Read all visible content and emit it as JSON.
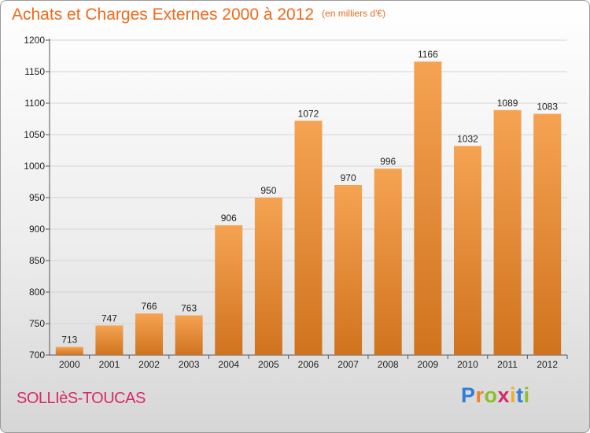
{
  "header": {
    "title": "Achats et Charges Externes 2000 à 2012",
    "unit": "(en milliers d'€)"
  },
  "footer": {
    "commune": "SOLLIèS-TOUCAS",
    "logo": "Proxiti"
  },
  "colors": {
    "bar_top": "#f5a352",
    "bar_bottom": "#d0731e",
    "title": "#ef6a1b",
    "commune": "#d9286a"
  },
  "chart_data": {
    "type": "bar",
    "title": "Achats et Charges Externes 2000 à 2012",
    "xlabel": "",
    "ylabel": "",
    "categories": [
      "2000",
      "2001",
      "2002",
      "2003",
      "2004",
      "2005",
      "2006",
      "2007",
      "2008",
      "2009",
      "2010",
      "2011",
      "2012"
    ],
    "values": [
      713,
      747,
      766,
      763,
      906,
      950,
      1072,
      970,
      996,
      1166,
      1032,
      1089,
      1083
    ],
    "ylim": [
      700,
      1200
    ],
    "yticks": [
      700,
      750,
      800,
      850,
      900,
      950,
      1000,
      1050,
      1100,
      1150,
      1200
    ],
    "grid": true
  }
}
